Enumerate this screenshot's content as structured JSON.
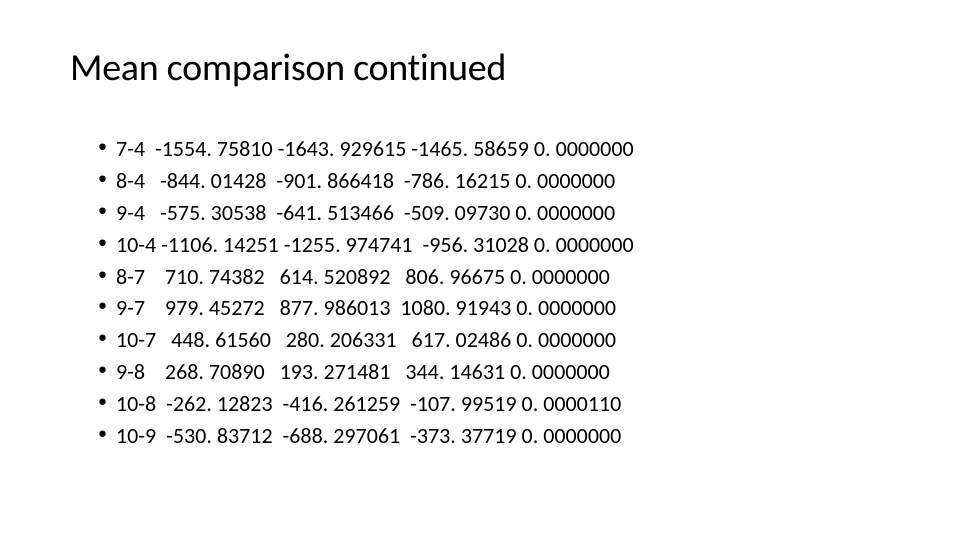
{
  "slide": {
    "title": "Mean comparison continued",
    "title_fontsize": 38,
    "body_fontsize": 22,
    "background_color": "#ffffff",
    "text_color": "#000000",
    "items": [
      "7-4  -1554. 75810 -1643. 929615 -1465. 58659 0. 0000000",
      "8-4   -844. 01428  -901. 866418  -786. 16215 0. 0000000",
      "9-4   -575. 30538  -641. 513466  -509. 09730 0. 0000000",
      "10-4 -1106. 14251 -1255. 974741  -956. 31028 0. 0000000",
      "8-7    710. 74382   614. 520892   806. 96675 0. 0000000",
      "9-7    979. 45272   877. 986013  1080. 91943 0. 0000000",
      "10-7   448. 61560   280. 206331   617. 02486 0. 0000000",
      "9-8    268. 70890   193. 271481   344. 14631 0. 0000000",
      "10-8  -262. 12823  -416. 261259  -107. 99519 0. 0000110",
      "10-9  -530. 83712  -688. 297061  -373. 37719 0. 0000000"
    ]
  }
}
